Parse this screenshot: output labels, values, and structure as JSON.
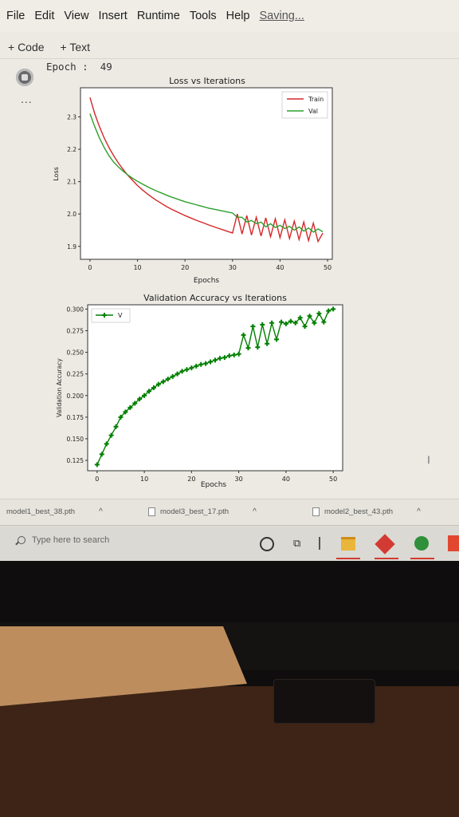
{
  "menu": {
    "items": [
      "File",
      "Edit",
      "View",
      "Insert",
      "Runtime",
      "Tools",
      "Help"
    ],
    "status": "Saving..."
  },
  "toolbar": {
    "add_code": "+ Code",
    "add_text": "+ Text"
  },
  "cell": {
    "more_label": "...",
    "output_text": "Epoch :  49"
  },
  "chart_data": [
    {
      "type": "line",
      "title": "Loss vs Iterations",
      "xlabel": "Epochs",
      "ylabel": "Loss",
      "xlim": [
        -2,
        51
      ],
      "ylim": [
        1.86,
        2.39
      ],
      "xticks": [
        0,
        10,
        20,
        30,
        40,
        50
      ],
      "yticks": [
        1.9,
        2.0,
        2.1,
        2.2,
        2.3
      ],
      "xtick_labels": [
        "0",
        "10",
        "20",
        "30",
        "40",
        "50"
      ],
      "ytick_labels": [
        "1.9",
        "2.0",
        "2.1",
        "2.2",
        "2.3"
      ],
      "legend": "top-right",
      "grid": false,
      "x": [
        0,
        1,
        2,
        3,
        4,
        5,
        6,
        7,
        8,
        9,
        10,
        11,
        12,
        13,
        14,
        15,
        16,
        17,
        18,
        19,
        20,
        21,
        22,
        23,
        24,
        25,
        26,
        27,
        28,
        29,
        30,
        31,
        32,
        33,
        34,
        35,
        36,
        37,
        38,
        39,
        40,
        41,
        42,
        43,
        44,
        45,
        46,
        47,
        48,
        49
      ],
      "series": [
        {
          "name": "Train",
          "color": "#d62728",
          "values": [
            2.36,
            2.31,
            2.27,
            2.235,
            2.205,
            2.18,
            2.157,
            2.137,
            2.119,
            2.103,
            2.088,
            2.075,
            2.063,
            2.052,
            2.042,
            2.033,
            2.024,
            2.016,
            2.009,
            2.002,
            1.995,
            1.989,
            1.983,
            1.977,
            1.972,
            1.966,
            1.961,
            1.956,
            1.951,
            1.946,
            1.941,
            2.0,
            1.938,
            1.995,
            1.935,
            1.99,
            1.932,
            1.988,
            1.93,
            1.985,
            1.927,
            1.982,
            1.924,
            1.978,
            1.921,
            1.975,
            1.918,
            1.972,
            1.915,
            1.941
          ]
        },
        {
          "name": "Val",
          "color": "#2ca02c",
          "values": [
            2.31,
            2.27,
            2.235,
            2.205,
            2.18,
            2.16,
            2.145,
            2.132,
            2.12,
            2.11,
            2.101,
            2.093,
            2.085,
            2.078,
            2.071,
            2.065,
            2.059,
            2.053,
            2.048,
            2.043,
            2.038,
            2.034,
            2.03,
            2.026,
            2.022,
            2.018,
            2.015,
            2.012,
            2.009,
            2.006,
            2.003,
            1.99,
            1.99,
            1.975,
            1.98,
            1.97,
            1.975,
            1.96,
            1.97,
            1.958,
            1.965,
            1.955,
            1.962,
            1.95,
            1.96,
            1.947,
            1.957,
            1.944,
            1.954,
            1.945
          ]
        }
      ]
    },
    {
      "type": "line",
      "title": "Validation Accuracy vs Iterations",
      "xlabel": "Epochs",
      "ylabel": "Validation Accuracy",
      "xlim": [
        -2,
        52
      ],
      "ylim": [
        0.113,
        0.305
      ],
      "xticks": [
        0,
        10,
        20,
        30,
        40,
        50
      ],
      "yticks": [
        0.125,
        0.15,
        0.175,
        0.2,
        0.225,
        0.25,
        0.275,
        0.3
      ],
      "xtick_labels": [
        "0",
        "10",
        "20",
        "30",
        "40",
        "50"
      ],
      "ytick_labels": [
        "0.125",
        "0.150",
        "0.175",
        "0.200",
        "0.225",
        "0.250",
        "0.275",
        "0.300"
      ],
      "legend": "top-left",
      "grid": false,
      "x": [
        0,
        1,
        2,
        3,
        4,
        5,
        6,
        7,
        8,
        9,
        10,
        11,
        12,
        13,
        14,
        15,
        16,
        17,
        18,
        19,
        20,
        21,
        22,
        23,
        24,
        25,
        26,
        27,
        28,
        29,
        30,
        31,
        32,
        33,
        34,
        35,
        36,
        37,
        38,
        39,
        40,
        41,
        42,
        43,
        44,
        45,
        46,
        47,
        48,
        49,
        50
      ],
      "series": [
        {
          "name": "V",
          "color": "#007f00",
          "marker": "plus",
          "values": [
            0.12,
            0.132,
            0.144,
            0.154,
            0.164,
            0.175,
            0.181,
            0.186,
            0.191,
            0.196,
            0.2,
            0.205,
            0.209,
            0.213,
            0.216,
            0.219,
            0.222,
            0.225,
            0.228,
            0.23,
            0.232,
            0.234,
            0.236,
            0.237,
            0.239,
            0.241,
            0.243,
            0.244,
            0.246,
            0.247,
            0.248,
            0.27,
            0.255,
            0.28,
            0.256,
            0.282,
            0.26,
            0.284,
            0.265,
            0.285,
            0.283,
            0.286,
            0.284,
            0.29,
            0.28,
            0.292,
            0.284,
            0.295,
            0.285,
            0.298,
            0.3
          ]
        }
      ]
    }
  ],
  "downloads": [
    {
      "file": "model1_best_38.pth"
    },
    {
      "file": "model3_best_17.pth"
    },
    {
      "file": "model2_best_43.pth"
    }
  ],
  "taskbar": {
    "search_placeholder": "Type here to search"
  },
  "icons": [
    "search-icon",
    "cortana-icon",
    "task-view-icon",
    "folder-icon",
    "app-red-icon",
    "app-green-icon",
    "app-orange-icon",
    "file-icon",
    "chevron-up-icon"
  ]
}
